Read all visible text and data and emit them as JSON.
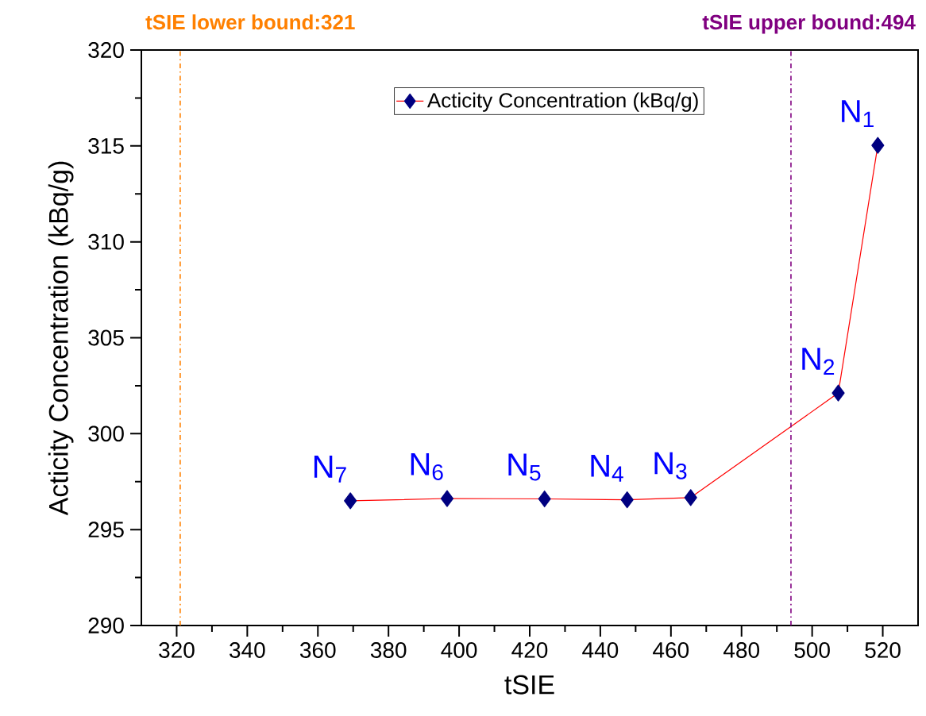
{
  "chart_data": {
    "type": "line",
    "xlabel": "tSIE",
    "ylabel": "Acticity Concentration (kBq/g)",
    "x": [
      369.2,
      396.6,
      424.2,
      447.6,
      465.6,
      507.4,
      518.6
    ],
    "series": [
      {
        "name": "Acticity Concentration (kBq/g)",
        "color": "#ff0000",
        "colors": [
          "#000080",
          "#000080",
          "#000080",
          "#000080",
          "#000080",
          "#000080",
          "#000080"
        ],
        "values": [
          296.5,
          296.62,
          296.6,
          296.55,
          296.67,
          302.12,
          315.03
        ]
      }
    ],
    "xlim": [
      310,
      530
    ],
    "ylim": [
      290,
      320
    ],
    "xticks": [
      320,
      340,
      360,
      380,
      400,
      420,
      440,
      460,
      480,
      500,
      520
    ],
    "yticks": [
      290,
      295,
      300,
      305,
      310,
      315,
      320
    ],
    "ref_lines": [
      {
        "axis": "x",
        "value": 321,
        "label": "tSIE lower bound:321",
        "color": "#ff8000",
        "line_style": "dashdot"
      },
      {
        "axis": "x",
        "value": 494,
        "label": "tSIE upper bound:494",
        "color": "#800080",
        "line_style": "dashdot"
      }
    ],
    "annotations": [
      {
        "text": "N$_{7}$",
        "x": 369.2,
        "y": 296.5
      },
      {
        "text": "N$_{6}$",
        "x": 396.6,
        "y": 296.62
      },
      {
        "text": "N$_{5}$",
        "x": 424.2,
        "y": 296.6
      },
      {
        "text": "N$_{4}$",
        "x": 447.6,
        "y": 296.55
      },
      {
        "text": "N$_{3}$",
        "x": 465.6,
        "y": 296.67
      },
      {
        "text": "N$_{2}$",
        "x": 507.4,
        "y": 302.12
      },
      {
        "text": "N$_{1}$",
        "x": 518.6,
        "y": 315.03
      }
    ],
    "marker": "diamond",
    "line_style": "solid",
    "legend": "top",
    "grid": false
  }
}
